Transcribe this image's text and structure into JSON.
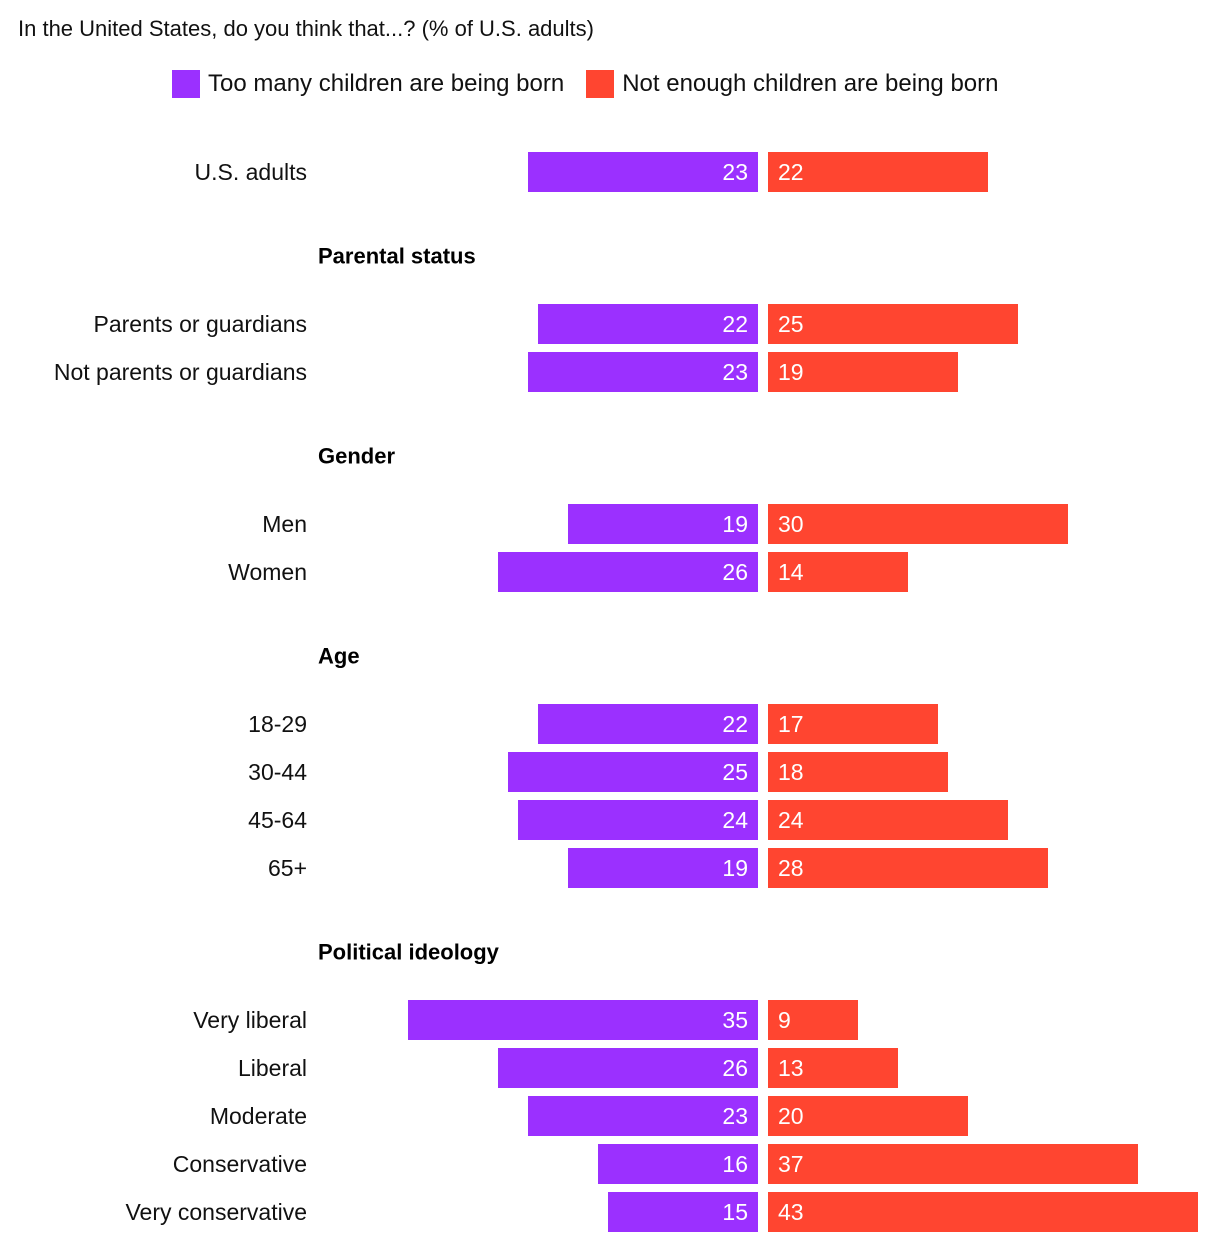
{
  "chart_data": {
    "type": "bar",
    "orientation": "horizontal-diverging",
    "title": "In the United States, do you think that...? (% of U.S. adults)",
    "series": [
      {
        "name": "Too many children are being born",
        "color": "#9b30ff"
      },
      {
        "name": "Not enough children are being born",
        "color": "#ff4530"
      }
    ],
    "rows": [
      {
        "kind": "category",
        "label": "U.S. adults",
        "too_many": 23,
        "not_enough": 22
      },
      {
        "kind": "heading",
        "label": "Parental status"
      },
      {
        "kind": "category",
        "label": "Parents or guardians",
        "too_many": 22,
        "not_enough": 25
      },
      {
        "kind": "category",
        "label": "Not parents or guardians",
        "too_many": 23,
        "not_enough": 19
      },
      {
        "kind": "heading",
        "label": "Gender"
      },
      {
        "kind": "category",
        "label": "Men",
        "too_many": 19,
        "not_enough": 30
      },
      {
        "kind": "category",
        "label": "Women",
        "too_many": 26,
        "not_enough": 14
      },
      {
        "kind": "heading",
        "label": "Age"
      },
      {
        "kind": "category",
        "label": "18-29",
        "too_many": 22,
        "not_enough": 17
      },
      {
        "kind": "category",
        "label": "30-44",
        "too_many": 25,
        "not_enough": 18
      },
      {
        "kind": "category",
        "label": "45-64",
        "too_many": 24,
        "not_enough": 24
      },
      {
        "kind": "category",
        "label": "65+",
        "too_many": 19,
        "not_enough": 28
      },
      {
        "kind": "heading",
        "label": "Political ideology"
      },
      {
        "kind": "category",
        "label": "Very liberal",
        "too_many": 35,
        "not_enough": 9
      },
      {
        "kind": "category",
        "label": "Liberal",
        "too_many": 26,
        "not_enough": 13
      },
      {
        "kind": "category",
        "label": "Moderate",
        "too_many": 23,
        "not_enough": 20
      },
      {
        "kind": "category",
        "label": "Conservative",
        "too_many": 16,
        "not_enough": 37
      },
      {
        "kind": "category",
        "label": "Very conservative",
        "too_many": 15,
        "not_enough": 43
      }
    ]
  }
}
